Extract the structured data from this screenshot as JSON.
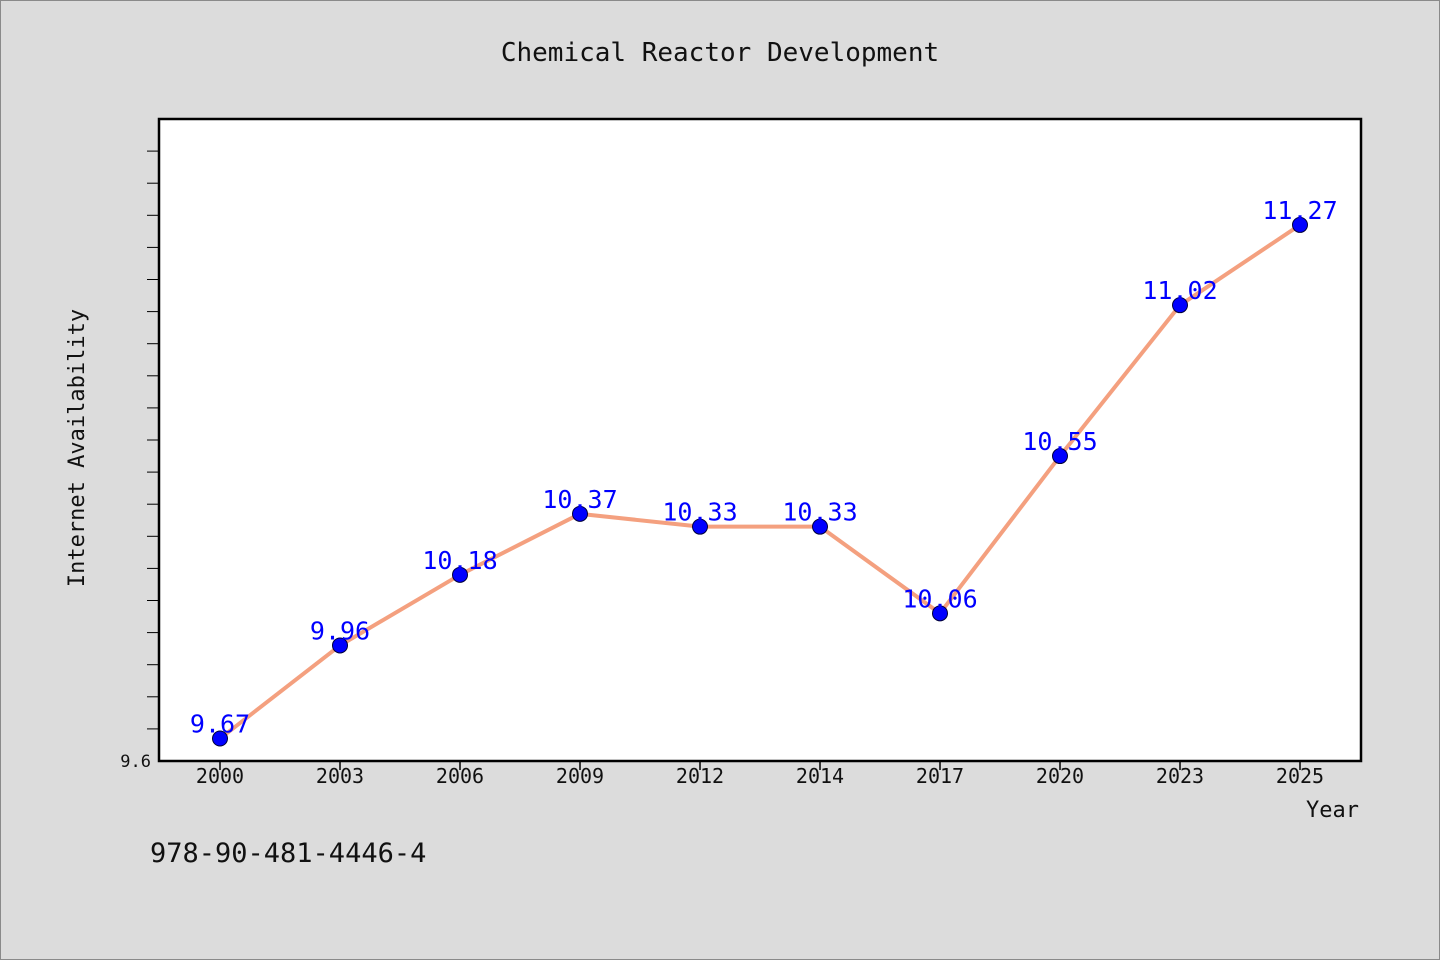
{
  "colors": {
    "background": "#dcdcdc",
    "plot_area": "#ffffff",
    "line": "#f4a07f",
    "marker": "#0000ff",
    "data_label": "#0000ff"
  },
  "footer": {
    "isbn": "978-90-481-4446-4"
  },
  "chart_data": {
    "type": "line",
    "title": "Chemical Reactor Development",
    "xlabel": "Year",
    "ylabel": "Internet Availability",
    "categories": [
      "2000",
      "2003",
      "2006",
      "2009",
      "2012",
      "2014",
      "2017",
      "2020",
      "2023",
      "2025"
    ],
    "series": [
      {
        "values": [
          9.67,
          9.96,
          10.18,
          10.37,
          10.33,
          10.33,
          10.06,
          10.55,
          11.02,
          11.27
        ],
        "labels": [
          "9.67",
          "9.96",
          "10.18",
          "10.37",
          "10.33",
          "10.33",
          "10.06",
          "10.55",
          "11.02",
          "11.27"
        ]
      }
    ],
    "ylim": [
      9.6,
      11.6
    ],
    "y_tick_labels": [
      "9.6"
    ],
    "y_minor_tick_step": 0.1,
    "grid": false,
    "legend": "none"
  }
}
